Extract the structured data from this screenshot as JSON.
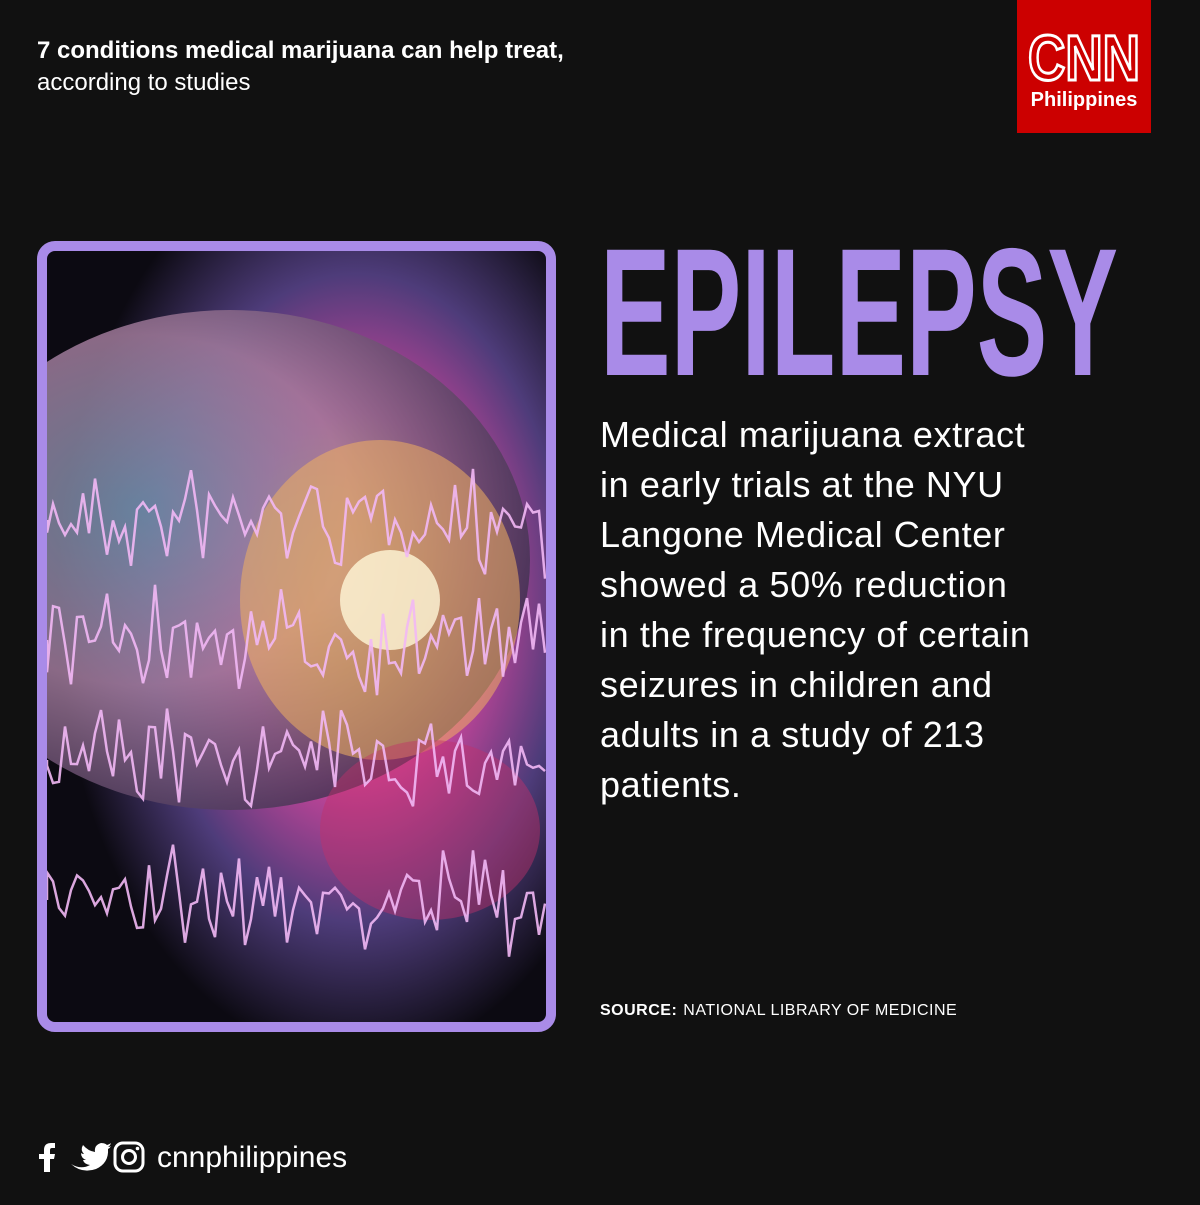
{
  "header": {
    "title": "7 conditions medical marijuana can help treat,",
    "subtitle": "according to studies"
  },
  "logo": {
    "brand": "CNN",
    "region": "Philippines"
  },
  "heading": "EPILEPSY",
  "body": [
    "Medical marijuana extract",
    "in early trials at the NYU",
    "Langone Medical Center",
    "showed a 50% reduction",
    "in the frequency of certain",
    "seizures in children and",
    "adults in a study of 213",
    "patients."
  ],
  "source": {
    "label": "SOURCE:",
    "text": "NATIONAL LIBRARY OF MEDICINE"
  },
  "footer": {
    "handle": "cnnphilippines"
  }
}
